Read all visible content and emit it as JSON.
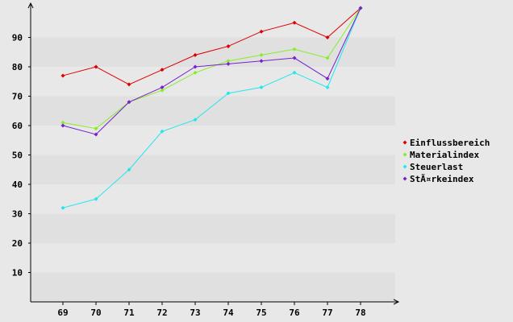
{
  "chart_data": {
    "type": "line",
    "title": "",
    "xlabel": "",
    "ylabel": "",
    "x": [
      "69",
      "70",
      "71",
      "72",
      "73",
      "74",
      "75",
      "76",
      "77",
      "78"
    ],
    "yticks": [
      10,
      20,
      30,
      40,
      50,
      60,
      70,
      80,
      90
    ],
    "ylim": [
      0,
      100
    ],
    "grid": "horizontal alternating bands",
    "legend_position": "right",
    "series": [
      {
        "name": "Einflussbereich",
        "color": "#dd0000",
        "values": [
          77,
          80,
          74,
          79,
          84,
          87,
          92,
          95,
          90,
          100
        ]
      },
      {
        "name": "Materialindex",
        "color": "#88ee22",
        "values": [
          61,
          59,
          68,
          72,
          78,
          82,
          84,
          86,
          83,
          100
        ]
      },
      {
        "name": "Steuerlast",
        "color": "#22e6ee",
        "values": [
          32,
          35,
          45,
          58,
          62,
          71,
          73,
          78,
          73,
          100
        ]
      },
      {
        "name": "StÃ¤rkeindex",
        "color": "#7722cc",
        "values": [
          60,
          57,
          68,
          73,
          80,
          81,
          82,
          83,
          76,
          100
        ]
      }
    ]
  }
}
